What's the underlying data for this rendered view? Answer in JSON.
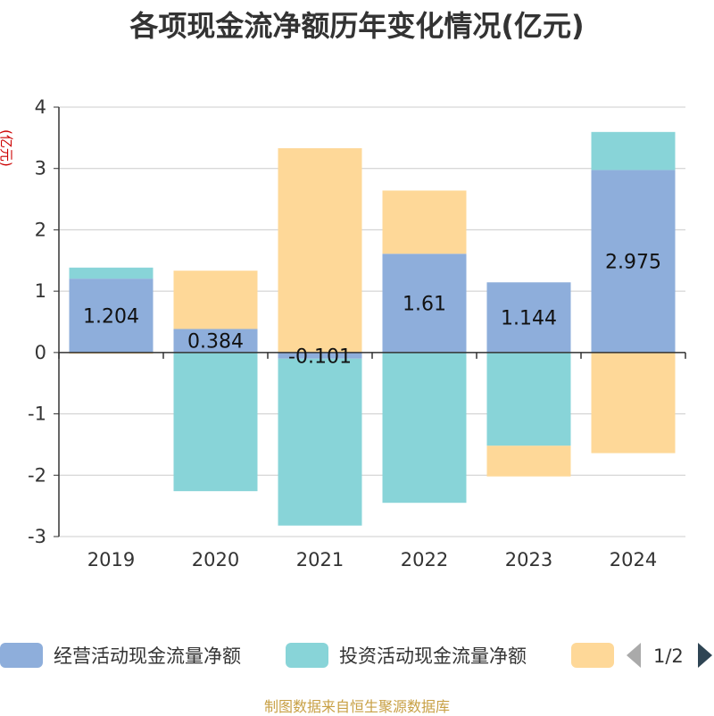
{
  "chart_data": {
    "type": "bar",
    "stacked": true,
    "title": "各项现金流净额历年变化情况(亿元)",
    "ylabel": "(亿元)",
    "categories": [
      "2019",
      "2020",
      "2021",
      "2022",
      "2023",
      "2024"
    ],
    "ylim": [
      -3,
      4
    ],
    "yticks": [
      4,
      3,
      2,
      1,
      0,
      -1,
      -2,
      -3
    ],
    "grid": true,
    "series": [
      {
        "name": "经营活动现金流量净额",
        "color": "#8eaedb",
        "values": [
          1.204,
          0.384,
          -0.101,
          1.61,
          1.144,
          2.975
        ]
      },
      {
        "name": "投资活动现金流量净额",
        "color": "#88d4d8",
        "values": [
          0.18,
          -2.26,
          -2.72,
          -2.45,
          -1.52,
          0.62
        ]
      },
      {
        "name": "",
        "color": "#fed898",
        "values": [
          -0.02,
          0.95,
          3.33,
          1.03,
          -0.5,
          -1.64
        ]
      }
    ],
    "data_labels": [
      "1.204",
      "0.384",
      "-0.101",
      "1.61",
      "1.144",
      "2.975"
    ],
    "legend": {
      "position": "bottom",
      "page": "1/2"
    }
  },
  "source": "制图数据来自恒生聚源数据库",
  "colors": {
    "title": "#333333",
    "axis": "#333333",
    "grid": "#cccccc",
    "ylabel": "#cc0000",
    "source": "#c8a045",
    "pager_active": "#2f4554",
    "pager_inactive": "#aaaaaa"
  }
}
